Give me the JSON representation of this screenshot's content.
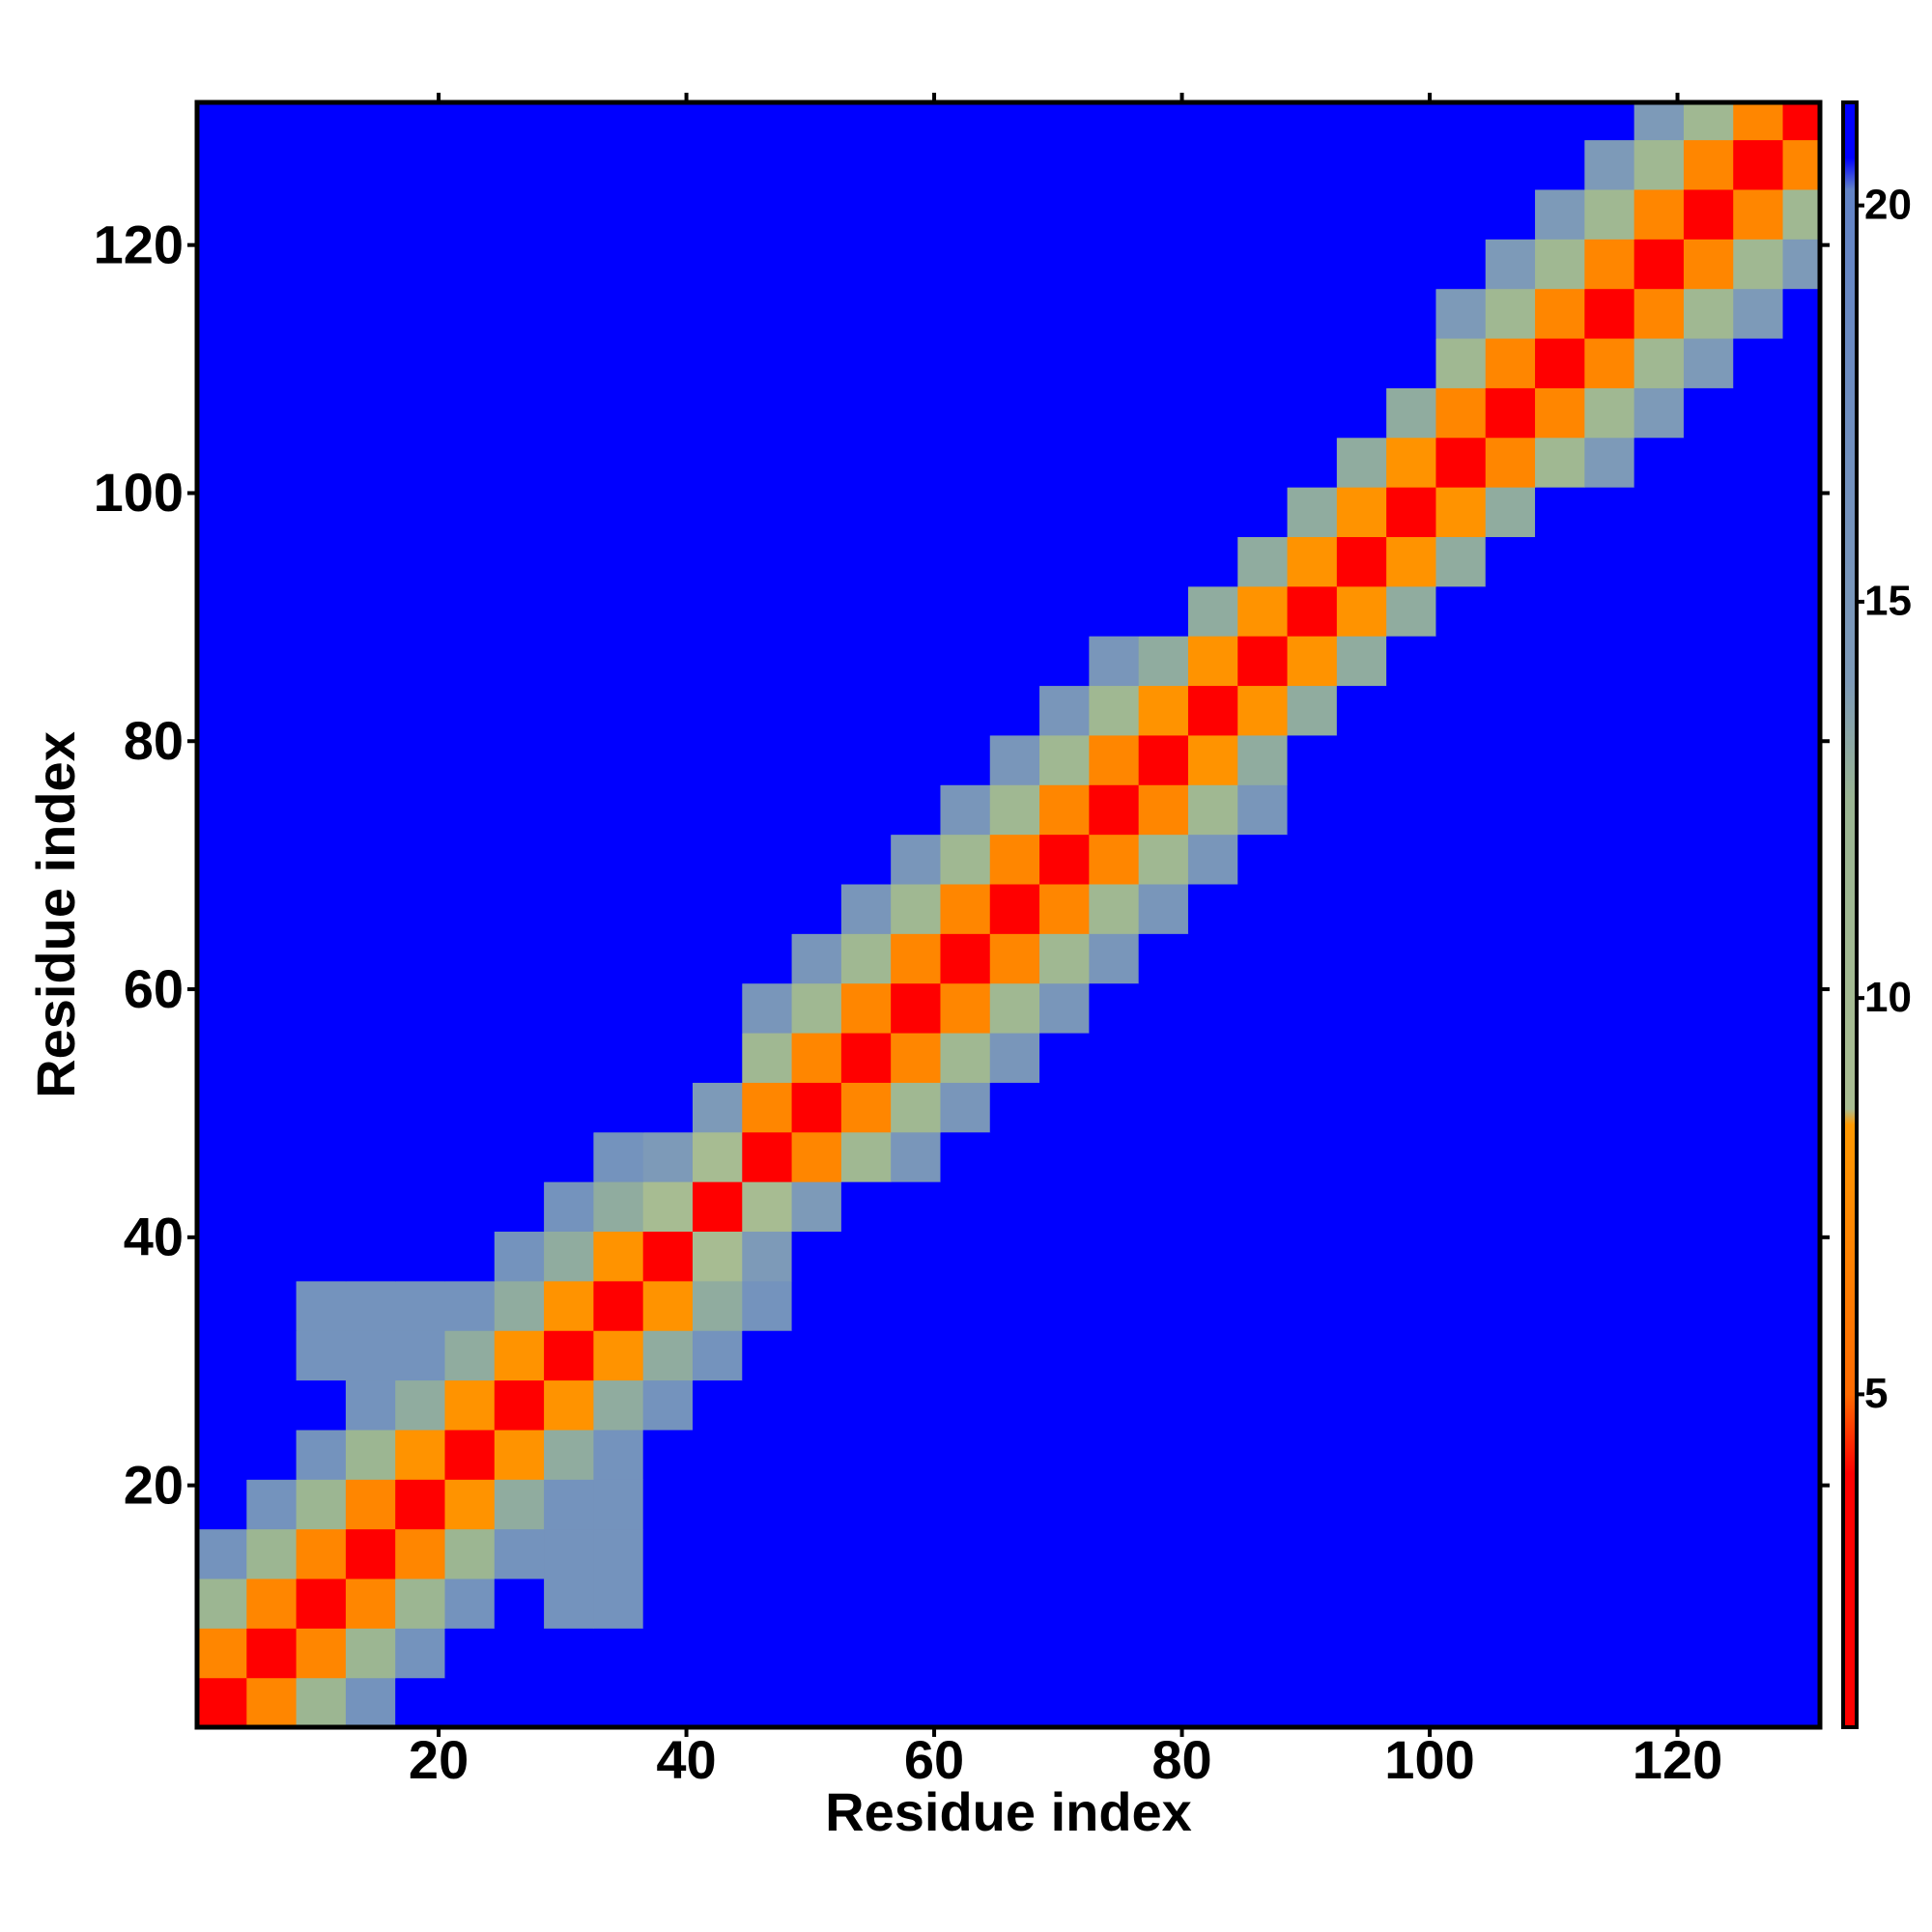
{
  "chart_data": {
    "type": "heatmap",
    "x_label": "Residue index",
    "y_label": "Residue index",
    "xlim": [
      0.5,
      131.5
    ],
    "ylim": [
      0.5,
      131.5
    ],
    "xticks": [
      20,
      40,
      60,
      80,
      100,
      120
    ],
    "yticks": [
      20,
      40,
      60,
      80,
      100,
      120
    ],
    "zlim": [
      0.8,
      21.3
    ],
    "zticks": [
      5,
      10,
      15,
      20
    ],
    "colorscale": [
      [
        0.8,
        "#ff0000"
      ],
      [
        4,
        "#ff0000"
      ],
      [
        5,
        "#ff6a00"
      ],
      [
        8.4,
        "#ff9900"
      ],
      [
        8.6,
        "#a9bd92"
      ],
      [
        12.5,
        "#9ab592"
      ],
      [
        14,
        "#7d9ab8"
      ],
      [
        20.2,
        "#6283c6"
      ],
      [
        20.6,
        "#0000ff"
      ],
      [
        21.3,
        "#0000ff"
      ]
    ],
    "x": [
      2.5,
      6.5,
      10.5,
      14.5,
      18.5,
      22.5,
      26.5,
      30.5,
      34.5,
      38.5,
      42.5,
      46.5,
      50.5,
      54.5,
      58.5,
      62.5,
      66.5,
      70.5,
      74.5,
      78.5,
      82.5,
      86.5,
      90.5,
      94.5,
      98.5,
      102.5,
      106.5,
      110.5,
      114.5,
      118.5,
      122.5,
      126.5,
      130.5
    ],
    "y": [
      2.5,
      6.5,
      10.5,
      14.5,
      18.5,
      22.5,
      26.5,
      30.5,
      34.5,
      38.5,
      42.5,
      46.5,
      50.5,
      54.5,
      58.5,
      62.5,
      66.5,
      70.5,
      74.5,
      78.5,
      82.5,
      86.5,
      90.5,
      94.5,
      98.5,
      102.5,
      106.5,
      110.5,
      114.5,
      118.5,
      122.5,
      126.5,
      130.5
    ],
    "z": [
      [
        3,
        7,
        12,
        16,
        21,
        21,
        21,
        21,
        21,
        21,
        21,
        21,
        21,
        21,
        21,
        21,
        21,
        21,
        21,
        21,
        21,
        21,
        21,
        21,
        21,
        21,
        21,
        21,
        21,
        21,
        21,
        21,
        21
      ],
      [
        7,
        3,
        7,
        12,
        16,
        21,
        21,
        21,
        21,
        21,
        21,
        21,
        21,
        21,
        21,
        21,
        21,
        21,
        21,
        21,
        21,
        21,
        21,
        21,
        21,
        21,
        21,
        21,
        21,
        21,
        21,
        21,
        21
      ],
      [
        12,
        7,
        3,
        7,
        12,
        16,
        21,
        16,
        16,
        21,
        21,
        21,
        21,
        21,
        21,
        21,
        21,
        21,
        21,
        21,
        21,
        21,
        21,
        21,
        21,
        21,
        21,
        21,
        21,
        21,
        21,
        21,
        21
      ],
      [
        16,
        12,
        7,
        3,
        7,
        12,
        16,
        16,
        16,
        21,
        21,
        21,
        21,
        21,
        21,
        21,
        21,
        21,
        21,
        21,
        21,
        21,
        21,
        21,
        21,
        21,
        21,
        21,
        21,
        21,
        21,
        21,
        21
      ],
      [
        21,
        16,
        12,
        7,
        3,
        8,
        13,
        16,
        16,
        21,
        21,
        21,
        21,
        21,
        21,
        21,
        21,
        21,
        21,
        21,
        21,
        21,
        21,
        21,
        21,
        21,
        21,
        21,
        21,
        21,
        21,
        21,
        21
      ],
      [
        21,
        21,
        16,
        12,
        8,
        3,
        8,
        13,
        16,
        21,
        21,
        21,
        21,
        21,
        21,
        21,
        21,
        21,
        21,
        21,
        21,
        21,
        21,
        21,
        21,
        21,
        21,
        21,
        21,
        21,
        21,
        21,
        21
      ],
      [
        21,
        21,
        21,
        16,
        13,
        8,
        3,
        8,
        13,
        16,
        21,
        21,
        21,
        21,
        21,
        21,
        21,
        21,
        21,
        21,
        21,
        21,
        21,
        21,
        21,
        21,
        21,
        21,
        21,
        21,
        21,
        21,
        21
      ],
      [
        21,
        21,
        16,
        16,
        16,
        13,
        8,
        3,
        8,
        13,
        16,
        21,
        21,
        21,
        21,
        21,
        21,
        21,
        21,
        21,
        21,
        21,
        21,
        21,
        21,
        21,
        21,
        21,
        21,
        21,
        21,
        21,
        21
      ],
      [
        21,
        21,
        16,
        16,
        16,
        16,
        13,
        8,
        3,
        8,
        13,
        16,
        21,
        21,
        21,
        21,
        21,
        21,
        21,
        21,
        21,
        21,
        21,
        21,
        21,
        21,
        21,
        21,
        21,
        21,
        21,
        21,
        21
      ],
      [
        21,
        21,
        21,
        21,
        21,
        21,
        16,
        13,
        8,
        3,
        9,
        14,
        21,
        21,
        21,
        21,
        21,
        21,
        21,
        21,
        21,
        21,
        21,
        21,
        21,
        21,
        21,
        21,
        21,
        21,
        21,
        21,
        21
      ],
      [
        21,
        21,
        21,
        21,
        21,
        21,
        21,
        16,
        13,
        9,
        3,
        9,
        14,
        21,
        21,
        21,
        21,
        21,
        21,
        21,
        21,
        21,
        21,
        21,
        21,
        21,
        21,
        21,
        21,
        21,
        21,
        21,
        21
      ],
      [
        21,
        21,
        21,
        21,
        21,
        21,
        21,
        21,
        16,
        14,
        9,
        3,
        7,
        11,
        15,
        21,
        21,
        21,
        21,
        21,
        21,
        21,
        21,
        21,
        21,
        21,
        21,
        21,
        21,
        21,
        21,
        21,
        21
      ],
      [
        21,
        21,
        21,
        21,
        21,
        21,
        21,
        21,
        21,
        21,
        14,
        7,
        3,
        7,
        11,
        15,
        21,
        21,
        21,
        21,
        21,
        21,
        21,
        21,
        21,
        21,
        21,
        21,
        21,
        21,
        21,
        21,
        21
      ],
      [
        21,
        21,
        21,
        21,
        21,
        21,
        21,
        21,
        21,
        21,
        21,
        11,
        7,
        3,
        7,
        11,
        15,
        21,
        21,
        21,
        21,
        21,
        21,
        21,
        21,
        21,
        21,
        21,
        21,
        21,
        21,
        21,
        21
      ],
      [
        21,
        21,
        21,
        21,
        21,
        21,
        21,
        21,
        21,
        21,
        21,
        15,
        11,
        7,
        3,
        7,
        11,
        15,
        21,
        21,
        21,
        21,
        21,
        21,
        21,
        21,
        21,
        21,
        21,
        21,
        21,
        21,
        21
      ],
      [
        21,
        21,
        21,
        21,
        21,
        21,
        21,
        21,
        21,
        21,
        21,
        21,
        15,
        11,
        7,
        3,
        7,
        11,
        15,
        21,
        21,
        21,
        21,
        21,
        21,
        21,
        21,
        21,
        21,
        21,
        21,
        21,
        21
      ],
      [
        21,
        21,
        21,
        21,
        21,
        21,
        21,
        21,
        21,
        21,
        21,
        21,
        21,
        15,
        11,
        7,
        3,
        7,
        11,
        15,
        21,
        21,
        21,
        21,
        21,
        21,
        21,
        21,
        21,
        21,
        21,
        21,
        21
      ],
      [
        21,
        21,
        21,
        21,
        21,
        21,
        21,
        21,
        21,
        21,
        21,
        21,
        21,
        21,
        15,
        11,
        7,
        3,
        7,
        11,
        15,
        21,
        21,
        21,
        21,
        21,
        21,
        21,
        21,
        21,
        21,
        21,
        21
      ],
      [
        21,
        21,
        21,
        21,
        21,
        21,
        21,
        21,
        21,
        21,
        21,
        21,
        21,
        21,
        21,
        15,
        11,
        7,
        3,
        7,
        11,
        15,
        21,
        21,
        21,
        21,
        21,
        21,
        21,
        21,
        21,
        21,
        21
      ],
      [
        21,
        21,
        21,
        21,
        21,
        21,
        21,
        21,
        21,
        21,
        21,
        21,
        21,
        21,
        21,
        21,
        15,
        11,
        7,
        3,
        8,
        13,
        21,
        21,
        21,
        21,
        21,
        21,
        21,
        21,
        21,
        21,
        21
      ],
      [
        21,
        21,
        21,
        21,
        21,
        21,
        21,
        21,
        21,
        21,
        21,
        21,
        21,
        21,
        21,
        21,
        21,
        15,
        11,
        8,
        3,
        8,
        13,
        21,
        21,
        21,
        21,
        21,
        21,
        21,
        21,
        21,
        21
      ],
      [
        21,
        21,
        21,
        21,
        21,
        21,
        21,
        21,
        21,
        21,
        21,
        21,
        21,
        21,
        21,
        21,
        21,
        21,
        15,
        13,
        8,
        3,
        8,
        13,
        21,
        21,
        21,
        21,
        21,
        21,
        21,
        21,
        21
      ],
      [
        21,
        21,
        21,
        21,
        21,
        21,
        21,
        21,
        21,
        21,
        21,
        21,
        21,
        21,
        21,
        21,
        21,
        21,
        21,
        21,
        13,
        8,
        3,
        8,
        13,
        21,
        21,
        21,
        21,
        21,
        21,
        21,
        21
      ],
      [
        21,
        21,
        21,
        21,
        21,
        21,
        21,
        21,
        21,
        21,
        21,
        21,
        21,
        21,
        21,
        21,
        21,
        21,
        21,
        21,
        21,
        13,
        8,
        3,
        8,
        13,
        21,
        21,
        21,
        21,
        21,
        21,
        21
      ],
      [
        21,
        21,
        21,
        21,
        21,
        21,
        21,
        21,
        21,
        21,
        21,
        21,
        21,
        21,
        21,
        21,
        21,
        21,
        21,
        21,
        21,
        21,
        13,
        8,
        3,
        8,
        13,
        21,
        21,
        21,
        21,
        21,
        21
      ],
      [
        21,
        21,
        21,
        21,
        21,
        21,
        21,
        21,
        21,
        21,
        21,
        21,
        21,
        21,
        21,
        21,
        21,
        21,
        21,
        21,
        21,
        21,
        21,
        13,
        8,
        3,
        7,
        11,
        14,
        21,
        21,
        21,
        21
      ],
      [
        21,
        21,
        21,
        21,
        21,
        21,
        21,
        21,
        21,
        21,
        21,
        21,
        21,
        21,
        21,
        21,
        21,
        21,
        21,
        21,
        21,
        21,
        21,
        21,
        13,
        7,
        3,
        7,
        11,
        14,
        21,
        21,
        21
      ],
      [
        21,
        21,
        21,
        21,
        21,
        21,
        21,
        21,
        21,
        21,
        21,
        21,
        21,
        21,
        21,
        21,
        21,
        21,
        21,
        21,
        21,
        21,
        21,
        21,
        21,
        11,
        7,
        3,
        7,
        11,
        14,
        21,
        21
      ],
      [
        21,
        21,
        21,
        21,
        21,
        21,
        21,
        21,
        21,
        21,
        21,
        21,
        21,
        21,
        21,
        21,
        21,
        21,
        21,
        21,
        21,
        21,
        21,
        21,
        21,
        14,
        11,
        7,
        3,
        7,
        11,
        14,
        21
      ],
      [
        21,
        21,
        21,
        21,
        21,
        21,
        21,
        21,
        21,
        21,
        21,
        21,
        21,
        21,
        21,
        21,
        21,
        21,
        21,
        21,
        21,
        21,
        21,
        21,
        21,
        21,
        14,
        11,
        7,
        3,
        7,
        11,
        14
      ],
      [
        21,
        21,
        21,
        21,
        21,
        21,
        21,
        21,
        21,
        21,
        21,
        21,
        21,
        21,
        21,
        21,
        21,
        21,
        21,
        21,
        21,
        21,
        21,
        21,
        21,
        21,
        21,
        14,
        11,
        7,
        3,
        7,
        11
      ],
      [
        21,
        21,
        21,
        21,
        21,
        21,
        21,
        21,
        21,
        21,
        21,
        21,
        21,
        21,
        21,
        21,
        21,
        21,
        21,
        21,
        21,
        21,
        21,
        21,
        21,
        21,
        21,
        21,
        14,
        11,
        7,
        3,
        7
      ],
      [
        21,
        21,
        21,
        21,
        21,
        21,
        21,
        21,
        21,
        21,
        21,
        21,
        21,
        21,
        21,
        21,
        21,
        21,
        21,
        21,
        21,
        21,
        21,
        21,
        21,
        21,
        21,
        21,
        21,
        14,
        11,
        7,
        3
      ]
    ]
  }
}
